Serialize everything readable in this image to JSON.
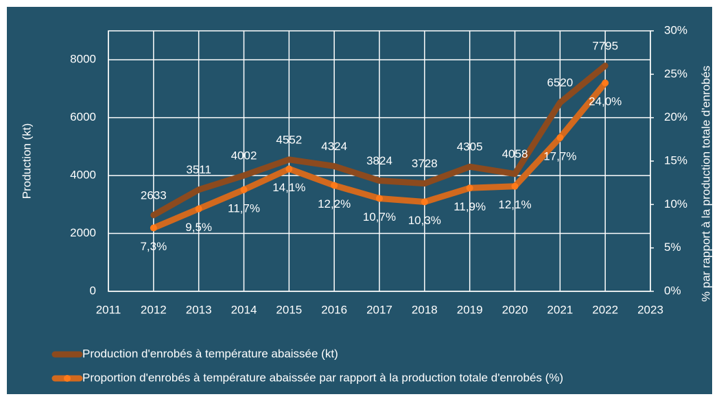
{
  "chart_data": {
    "type": "line",
    "x": [
      2012,
      2013,
      2014,
      2015,
      2016,
      2017,
      2018,
      2019,
      2020,
      2021,
      2022
    ],
    "xlim": [
      2011,
      2023
    ],
    "xticks": [
      2011,
      2012,
      2013,
      2014,
      2015,
      2016,
      2017,
      2018,
      2019,
      2020,
      2021,
      2022,
      2023
    ],
    "y_label": "Production (kt)",
    "y2_label": "% par rapport à la production totale d'enrobés",
    "ylim": [
      0,
      9000
    ],
    "yticks": [
      0,
      2000,
      4000,
      6000,
      8000
    ],
    "y2lim": [
      0,
      30
    ],
    "y2ticks": [
      {
        "value": 0,
        "label": "0%"
      },
      {
        "value": 5,
        "label": "5%"
      },
      {
        "value": 10,
        "label": "10%"
      },
      {
        "value": 15,
        "label": "15%"
      },
      {
        "value": 20,
        "label": "20%"
      },
      {
        "value": 25,
        "label": "25%"
      },
      {
        "value": 30,
        "label": "30%"
      }
    ],
    "grid": true,
    "legend": "bottom",
    "series": [
      {
        "name": "Production d'enrobés à température abaissée (kt)",
        "color": "#8c4a1e",
        "values": [
          2633,
          3511,
          4002,
          4552,
          4324,
          3824,
          3728,
          4305,
          4058,
          6520,
          7795
        ]
      },
      {
        "name": "Proportion d'enrobés à température abaissée par rapport à la production totale d'enrobés (%)",
        "color": "#d2691e",
        "marker_color": "#ff7a1a",
        "axis": "y2",
        "values": [
          7.3,
          9.5,
          11.7,
          14.1,
          12.2,
          10.7,
          10.3,
          11.9,
          12.1,
          17.7,
          24.0
        ],
        "value_labels": [
          "7,3%",
          "9,5%",
          "11,7%",
          "14,1%",
          "12,2%",
          "10,7%",
          "10,3%",
          "11,9%",
          "12,1%",
          "17,7%",
          "24,0%"
        ]
      }
    ]
  }
}
